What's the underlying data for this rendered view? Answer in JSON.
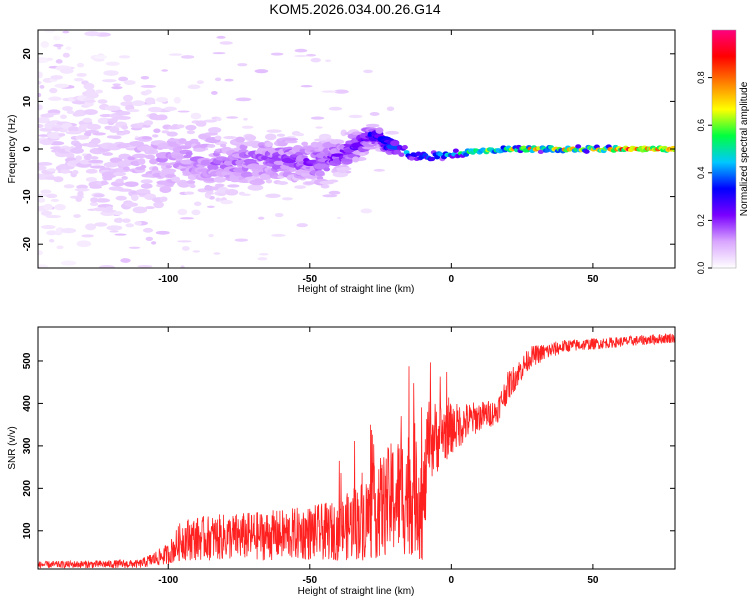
{
  "title": "KOM5.2026.034.00.26.G14",
  "chart_data": [
    {
      "type": "heatmap",
      "xlabel": "Height of straight line (km)",
      "ylabel": "Frequency (Hz)",
      "xlim": [
        -146,
        79
      ],
      "ylim": [
        -25,
        25
      ],
      "x_ticks": [
        -100,
        -50,
        0,
        50
      ],
      "y_ticks": [
        -20,
        -10,
        0,
        10,
        20
      ],
      "colorbar": {
        "label": "Normalized spectral amplitude",
        "range": [
          0,
          1
        ],
        "ticks": [
          0.0,
          0.2,
          0.4,
          0.6,
          0.8
        ],
        "colors": [
          "#ffffff",
          "#d9a6ff",
          "#7a00ff",
          "#0000ff",
          "#00c8ff",
          "#00ff40",
          "#ffff00",
          "#ff8000",
          "#ff0000",
          "#ff0080"
        ]
      },
      "ridge": [
        {
          "x": -146,
          "y": 0,
          "spread": 18,
          "amp": 0.05
        },
        {
          "x": -120,
          "y": -2,
          "spread": 14,
          "amp": 0.08
        },
        {
          "x": -100,
          "y": -2,
          "spread": 8,
          "amp": 0.12
        },
        {
          "x": -80,
          "y": -3,
          "spread": 5,
          "amp": 0.15
        },
        {
          "x": -60,
          "y": -2,
          "spread": 4,
          "amp": 0.18
        },
        {
          "x": -45,
          "y": -3,
          "spread": 3.5,
          "amp": 0.2
        },
        {
          "x": -35,
          "y": 0,
          "spread": 2.5,
          "amp": 0.22
        },
        {
          "x": -27,
          "y": 3,
          "spread": 1.5,
          "amp": 0.3
        },
        {
          "x": -22,
          "y": 1,
          "spread": 1.2,
          "amp": 0.35
        },
        {
          "x": -15,
          "y": -1,
          "spread": 1,
          "amp": 0.4
        },
        {
          "x": -8,
          "y": -1.5,
          "spread": 0.8,
          "amp": 0.45
        },
        {
          "x": 0,
          "y": -1,
          "spread": 0.6,
          "amp": 0.5
        },
        {
          "x": 10,
          "y": -0.5,
          "spread": 0.5,
          "amp": 0.6
        },
        {
          "x": 20,
          "y": 0,
          "spread": 0.4,
          "amp": 0.7
        },
        {
          "x": 40,
          "y": 0,
          "spread": 0.4,
          "amp": 0.8
        },
        {
          "x": 60,
          "y": 0,
          "spread": 0.4,
          "amp": 0.85
        },
        {
          "x": 79,
          "y": 0,
          "spread": 0.4,
          "amp": 0.85
        }
      ]
    },
    {
      "type": "line",
      "xlabel": "Height of straight line (km)",
      "ylabel": "SNR (v/v)",
      "xlim": [
        -146,
        79
      ],
      "ylim": [
        10,
        580
      ],
      "x_ticks": [
        -100,
        -50,
        0,
        50
      ],
      "y_ticks": [
        100,
        200,
        300,
        400,
        500
      ],
      "series": [
        {
          "color": "#ff2020",
          "envelope": [
            {
              "x": -146,
              "mean": 20,
              "noise": 8
            },
            {
              "x": -110,
              "mean": 22,
              "noise": 10
            },
            {
              "x": -100,
              "mean": 45,
              "noise": 25
            },
            {
              "x": -95,
              "mean": 80,
              "noise": 50
            },
            {
              "x": -80,
              "mean": 85,
              "noise": 55
            },
            {
              "x": -60,
              "mean": 90,
              "noise": 60
            },
            {
              "x": -40,
              "mean": 100,
              "noise": 70
            },
            {
              "x": -30,
              "mean": 130,
              "noise": 100
            },
            {
              "x": -20,
              "mean": 180,
              "noise": 140
            },
            {
              "x": -12,
              "mean": 200,
              "noise": 160
            },
            {
              "x": -10,
              "mean": 150,
              "noise": 130
            },
            {
              "x": -8,
              "mean": 310,
              "noise": 100
            },
            {
              "x": 0,
              "mean": 340,
              "noise": 60
            },
            {
              "x": 10,
              "mean": 370,
              "noise": 35
            },
            {
              "x": 16,
              "mean": 380,
              "noise": 30
            },
            {
              "x": 20,
              "mean": 440,
              "noise": 35
            },
            {
              "x": 28,
              "mean": 510,
              "noise": 25
            },
            {
              "x": 40,
              "mean": 535,
              "noise": 15
            },
            {
              "x": 60,
              "mean": 545,
              "noise": 12
            },
            {
              "x": 79,
              "mean": 555,
              "noise": 12
            }
          ]
        }
      ]
    }
  ]
}
